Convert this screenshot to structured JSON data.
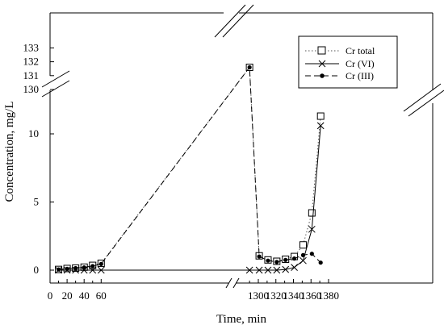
{
  "chart_data": {
    "type": "line",
    "xlabel": "Time, min",
    "ylabel": "Concentration, mg/L",
    "x_axis_breaks": [
      [
        70,
        1290
      ]
    ],
    "y_axis_break": [
      12,
      130
    ],
    "x_tick_labels": [
      "0",
      "20",
      "40",
      "60",
      "1300",
      "1320",
      "1340",
      "1360",
      "1380"
    ],
    "y_tick_labels_lower": [
      "0",
      "5",
      "10"
    ],
    "y_tick_labels_upper": [
      "130",
      "131",
      "132",
      "133"
    ],
    "legend": {
      "placement": "top-right"
    },
    "series": [
      {
        "name": "Cr total",
        "style": "dotted",
        "marker": "open-square",
        "points": [
          [
            10,
            0.05
          ],
          [
            20,
            0.12
          ],
          [
            30,
            0.15
          ],
          [
            40,
            0.22
          ],
          [
            50,
            0.35
          ],
          [
            60,
            0.5
          ],
          [
            1290,
            131.6
          ],
          [
            1301,
            1.05
          ],
          [
            1311,
            0.75
          ],
          [
            1321,
            0.65
          ],
          [
            1331,
            0.8
          ],
          [
            1341,
            1.0
          ],
          [
            1351,
            1.85
          ],
          [
            1361,
            4.2
          ],
          [
            1371,
            11.3
          ]
        ]
      },
      {
        "name": "Cr (VI)",
        "style": "solid",
        "marker": "x",
        "points": [
          [
            10,
            0.0
          ],
          [
            20,
            0.0
          ],
          [
            30,
            0.0
          ],
          [
            40,
            0.0
          ],
          [
            50,
            0.0
          ],
          [
            60,
            0.0
          ],
          [
            1290,
            0.0
          ],
          [
            1301,
            0.0
          ],
          [
            1311,
            0.0
          ],
          [
            1321,
            0.0
          ],
          [
            1331,
            0.05
          ],
          [
            1341,
            0.2
          ],
          [
            1351,
            0.7
          ],
          [
            1361,
            3.0
          ],
          [
            1371,
            10.6
          ]
        ]
      },
      {
        "name": "Cr (III)",
        "style": "dashed",
        "marker": "filled-circle",
        "points": [
          [
            10,
            0.05
          ],
          [
            20,
            0.1
          ],
          [
            30,
            0.15
          ],
          [
            40,
            0.2
          ],
          [
            50,
            0.3
          ],
          [
            60,
            0.45
          ],
          [
            1290,
            131.6
          ],
          [
            1301,
            1.0
          ],
          [
            1311,
            0.7
          ],
          [
            1321,
            0.6
          ],
          [
            1331,
            0.75
          ],
          [
            1341,
            0.85
          ],
          [
            1351,
            1.1
          ],
          [
            1361,
            1.2
          ],
          [
            1371,
            0.55
          ]
        ]
      }
    ]
  }
}
